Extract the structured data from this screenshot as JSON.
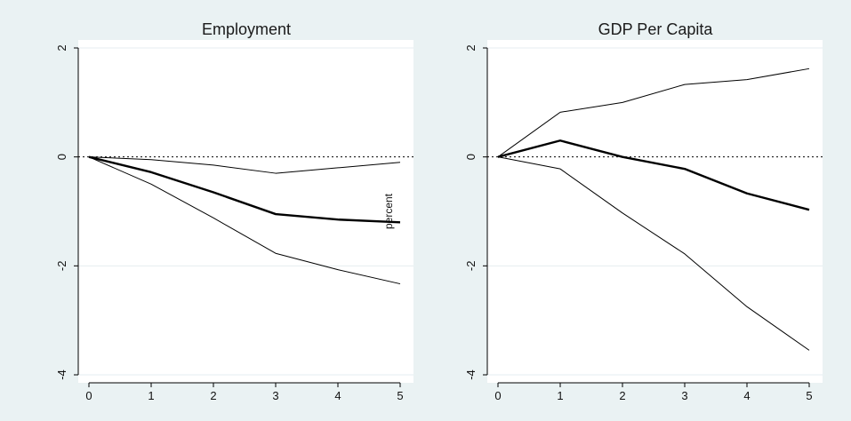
{
  "chart_data": [
    {
      "type": "line",
      "title": "Employment",
      "xlabel": "",
      "ylabel": "",
      "x": [
        0,
        1,
        2,
        3,
        4,
        5
      ],
      "xlim": [
        0,
        5
      ],
      "ylim": [
        -4,
        2
      ],
      "xticks": [
        0,
        1,
        2,
        3,
        4,
        5
      ],
      "yticks": [
        -4,
        -2,
        0,
        2
      ],
      "grid": "horizontal",
      "zero_line": "dotted",
      "annotation": "percent",
      "series": [
        {
          "values": [
            0,
            -0.05,
            -0.15,
            -0.3,
            -0.2,
            -0.1
          ],
          "style": "thin",
          "color": "#000000"
        },
        {
          "values": [
            0,
            -0.28,
            -0.65,
            -1.05,
            -1.15,
            -1.2
          ],
          "style": "thick",
          "color": "#000000"
        },
        {
          "values": [
            0,
            -0.5,
            -1.12,
            -1.77,
            -2.07,
            -2.33
          ],
          "style": "thin",
          "color": "#000000"
        }
      ]
    },
    {
      "type": "line",
      "title": "GDP Per Capita",
      "xlabel": "",
      "ylabel": "",
      "x": [
        0,
        1,
        2,
        3,
        4,
        5
      ],
      "xlim": [
        0,
        5
      ],
      "ylim": [
        -4,
        2
      ],
      "xticks": [
        0,
        1,
        2,
        3,
        4,
        5
      ],
      "yticks": [
        -4,
        -2,
        0,
        2
      ],
      "grid": "horizontal",
      "zero_line": "dotted",
      "series": [
        {
          "values": [
            0,
            0.82,
            1.0,
            1.33,
            1.42,
            1.62
          ],
          "style": "thin",
          "color": "#000000"
        },
        {
          "values": [
            0,
            0.3,
            0.0,
            -0.22,
            -0.67,
            -0.97
          ],
          "style": "thick",
          "color": "#000000"
        },
        {
          "values": [
            0,
            -0.22,
            -1.03,
            -1.78,
            -2.75,
            -3.55
          ],
          "style": "thin",
          "color": "#000000"
        }
      ]
    }
  ],
  "colors": {
    "background": "#eaf2f3",
    "plot_area": "#ffffff",
    "grid": "#e6eef0",
    "line": "#000000"
  }
}
